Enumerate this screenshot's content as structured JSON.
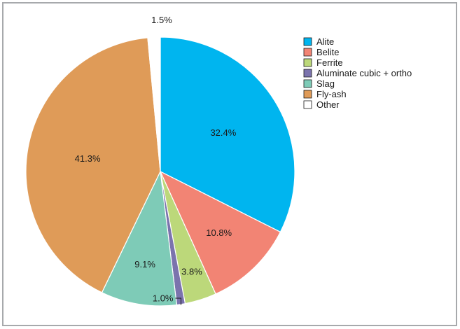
{
  "chart_data": {
    "type": "pie",
    "title": "",
    "start": "12 o'clock, clockwise",
    "legend_position": "top-right",
    "slices": [
      {
        "label": "Alite",
        "value": 32.4,
        "value_label": "32.4%",
        "color": "#00b5ef"
      },
      {
        "label": "Belite",
        "value": 10.8,
        "value_label": "10.8%",
        "color": "#f28474"
      },
      {
        "label": "Ferrite",
        "value": 3.8,
        "value_label": "3.8%",
        "color": "#bcd87a"
      },
      {
        "label": "Aluminate cubic + ortho",
        "value": 1.0,
        "value_label": "1.0%",
        "color": "#7b73ad"
      },
      {
        "label": "Slag",
        "value": 9.1,
        "value_label": "9.1%",
        "color": "#7ecbb7"
      },
      {
        "label": "Fly-ash",
        "value": 41.3,
        "value_label": "41.3%",
        "color": "#df9b58"
      },
      {
        "label": "Other",
        "value": 1.5,
        "value_label": "1.5%",
        "color": "#ffffff"
      }
    ]
  }
}
